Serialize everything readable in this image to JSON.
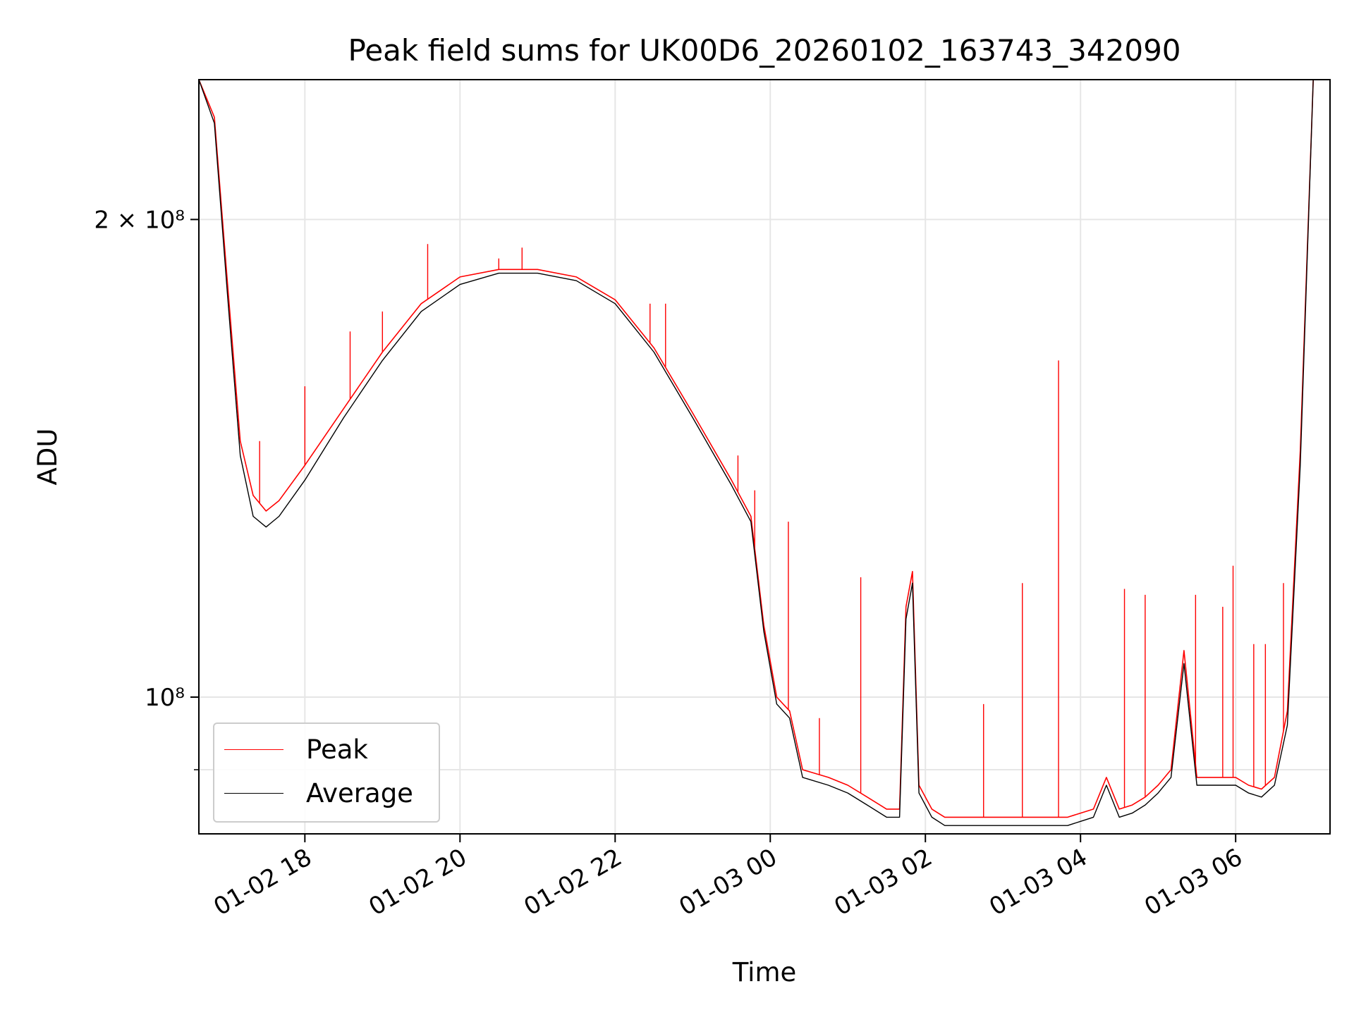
{
  "chart_data": {
    "type": "line",
    "title": "Peak field sums for UK00D6_20260102_163743_342090",
    "xlabel": "Time",
    "ylabel": "ADU",
    "yscale": "log",
    "xlim": [
      "01-02 16:38",
      "01-03 07:13"
    ],
    "ylim": [
      82000000,
      245000000
    ],
    "x_ticks": [
      "01-02 18",
      "01-02 20",
      "01-02 22",
      "01-03 00",
      "01-03 02",
      "01-03 04",
      "01-03 06"
    ],
    "y_tick_labels": [
      {
        "value": 200000000,
        "label": "2 × 10⁸"
      },
      {
        "value": 100000000,
        "label": "10⁸"
      }
    ],
    "y_minor_ticks": [
      90000000
    ],
    "grid": true,
    "legend": "lower-left",
    "series": [
      {
        "name": "Average",
        "color": "#000000",
        "x": [
          "01-02 16:38",
          "01-02 16:50",
          "01-02 17:00",
          "01-02 17:10",
          "01-02 17:20",
          "01-02 17:30",
          "01-02 17:40",
          "01-02 18:00",
          "01-02 18:30",
          "01-02 19:00",
          "01-02 19:30",
          "01-02 20:00",
          "01-02 20:30",
          "01-02 21:00",
          "01-02 21:30",
          "01-02 22:00",
          "01-02 22:30",
          "01-02 23:00",
          "01-02 23:30",
          "01-02 23:45",
          "01-02 23:55",
          "01-03 00:05",
          "01-03 00:15",
          "01-03 00:25",
          "01-03 00:45",
          "01-03 01:00",
          "01-03 01:15",
          "01-03 01:30",
          "01-03 01:40",
          "01-03 01:45",
          "01-03 01:50",
          "01-03 01:55",
          "01-03 02:05",
          "01-03 02:15",
          "01-03 02:30",
          "01-03 03:00",
          "01-03 03:30",
          "01-03 03:50",
          "01-03 04:00",
          "01-03 04:10",
          "01-03 04:20",
          "01-03 04:30",
          "01-03 04:40",
          "01-03 04:50",
          "01-03 05:00",
          "01-03 05:10",
          "01-03 05:20",
          "01-03 05:30",
          "01-03 05:40",
          "01-03 05:50",
          "01-03 06:00",
          "01-03 06:10",
          "01-03 06:20",
          "01-03 06:30",
          "01-03 06:40",
          "01-03 06:50",
          "01-03 07:00",
          "01-03 07:13"
        ],
        "values": [
          245000000,
          230000000,
          180000000,
          142000000,
          130000000,
          128000000,
          130000000,
          137000000,
          150000000,
          163000000,
          175000000,
          182000000,
          185000000,
          185000000,
          183000000,
          177000000,
          165000000,
          150000000,
          136000000,
          129000000,
          110000000,
          99000000,
          97000000,
          89000000,
          88000000,
          87000000,
          85500000,
          84000000,
          84000000,
          112000000,
          118000000,
          87000000,
          84000000,
          83000000,
          83000000,
          83000000,
          83000000,
          83000000,
          83500000,
          84000000,
          88000000,
          84000000,
          84500000,
          85500000,
          87000000,
          89000000,
          105000000,
          88000000,
          88000000,
          88000000,
          88000000,
          87000000,
          86500000,
          88000000,
          96000000,
          140000000,
          245000000,
          245000000
        ]
      },
      {
        "name": "Peak",
        "color": "#ff0000",
        "x": [
          "01-02 16:38",
          "01-02 16:50",
          "01-02 17:00",
          "01-02 17:10",
          "01-02 17:20",
          "01-02 17:30",
          "01-02 17:40",
          "01-02 18:00",
          "01-02 18:30",
          "01-02 19:00",
          "01-02 19:30",
          "01-02 20:00",
          "01-02 20:30",
          "01-02 21:00",
          "01-02 21:30",
          "01-02 22:00",
          "01-02 22:30",
          "01-02 23:00",
          "01-02 23:30",
          "01-02 23:45",
          "01-02 23:55",
          "01-03 00:05",
          "01-03 00:15",
          "01-03 00:25",
          "01-03 00:45",
          "01-03 01:00",
          "01-03 01:15",
          "01-03 01:30",
          "01-03 01:40",
          "01-03 01:45",
          "01-03 01:50",
          "01-03 01:55",
          "01-03 02:05",
          "01-03 02:15",
          "01-03 02:30",
          "01-03 03:00",
          "01-03 03:30",
          "01-03 03:50",
          "01-03 04:00",
          "01-03 04:10",
          "01-03 04:20",
          "01-03 04:30",
          "01-03 04:40",
          "01-03 04:50",
          "01-03 05:00",
          "01-03 05:10",
          "01-03 05:20",
          "01-03 05:30",
          "01-03 05:40",
          "01-03 05:50",
          "01-03 06:00",
          "01-03 06:10",
          "01-03 06:20",
          "01-03 06:30",
          "01-03 06:40",
          "01-03 06:50",
          "01-03 07:00",
          "01-03 07:13"
        ],
        "values": [
          245000000,
          232000000,
          183000000,
          145000000,
          134000000,
          131000000,
          133000000,
          140000000,
          152000000,
          165000000,
          177000000,
          184000000,
          186000000,
          186000000,
          184000000,
          178000000,
          166000000,
          151000000,
          137000000,
          130000000,
          111000000,
          100000000,
          98000000,
          90000000,
          89000000,
          88000000,
          86500000,
          85000000,
          85000000,
          114000000,
          120000000,
          88000000,
          85000000,
          84000000,
          84000000,
          84000000,
          84000000,
          84000000,
          84500000,
          85000000,
          89000000,
          85000000,
          85500000,
          86500000,
          88000000,
          90000000,
          107000000,
          89000000,
          89000000,
          89000000,
          89000000,
          88000000,
          87500000,
          89000000,
          98000000,
          143000000,
          245000000,
          245000000
        ],
        "spikes": [
          {
            "x": "01-02 17:25",
            "value": 145000000
          },
          {
            "x": "01-02 18:00",
            "value": 157000000
          },
          {
            "x": "01-02 18:35",
            "value": 170000000
          },
          {
            "x": "01-02 19:00",
            "value": 175000000
          },
          {
            "x": "01-02 19:35",
            "value": 193000000
          },
          {
            "x": "01-02 20:30",
            "value": 189000000
          },
          {
            "x": "01-02 20:48",
            "value": 192000000
          },
          {
            "x": "01-02 22:27",
            "value": 177000000
          },
          {
            "x": "01-02 22:39",
            "value": 177000000
          },
          {
            "x": "01-02 23:35",
            "value": 142000000
          },
          {
            "x": "01-02 23:48",
            "value": 135000000
          },
          {
            "x": "01-03 00:14",
            "value": 129000000
          },
          {
            "x": "01-03 00:38",
            "value": 97000000
          },
          {
            "x": "01-03 01:10",
            "value": 119000000
          },
          {
            "x": "01-03 02:45",
            "value": 99000000
          },
          {
            "x": "01-03 03:15",
            "value": 118000000
          },
          {
            "x": "01-03 03:43",
            "value": 163000000
          },
          {
            "x": "01-03 04:34",
            "value": 117000000
          },
          {
            "x": "01-03 04:50",
            "value": 116000000
          },
          {
            "x": "01-03 05:29",
            "value": 116000000
          },
          {
            "x": "01-03 05:50",
            "value": 114000000
          },
          {
            "x": "01-03 05:58",
            "value": 121000000
          },
          {
            "x": "01-03 06:14",
            "value": 108000000
          },
          {
            "x": "01-03 06:23",
            "value": 108000000
          },
          {
            "x": "01-03 06:37",
            "value": 118000000
          }
        ]
      }
    ]
  },
  "legend": {
    "peak_label": "Peak",
    "average_label": "Average"
  }
}
